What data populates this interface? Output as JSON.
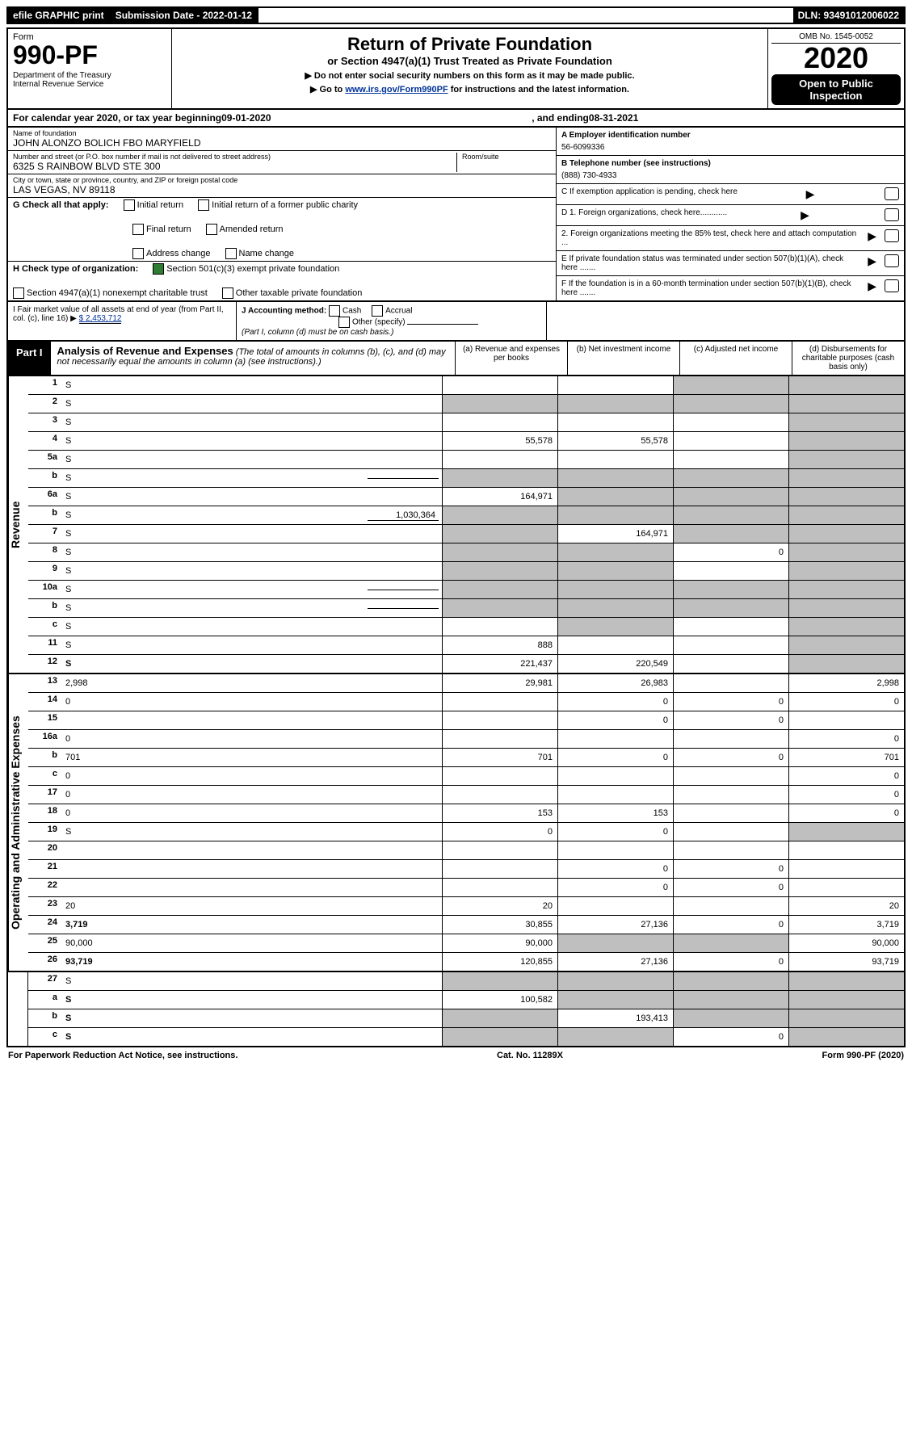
{
  "topbar": {
    "efile": "efile GRAPHIC print",
    "sub_label": "Submission Date - 2022-01-12",
    "dln": "DLN: 93491012006022"
  },
  "header": {
    "form_label": "Form",
    "form_no": "990-PF",
    "dept": "Department of the Treasury\nInternal Revenue Service",
    "title": "Return of Private Foundation",
    "subtitle": "or Section 4947(a)(1) Trust Treated as Private Foundation",
    "note1": "▶ Do not enter social security numbers on this form as it may be made public.",
    "note2_pre": "▶ Go to ",
    "note2_link": "www.irs.gov/Form990PF",
    "note2_post": " for instructions and the latest information.",
    "omb": "OMB No. 1545-0052",
    "year": "2020",
    "open": "Open to Public Inspection"
  },
  "cal": {
    "prefix": "For calendar year 2020, or tax year beginning ",
    "begin": "09-01-2020",
    "mid": " , and ending ",
    "end": "08-31-2021"
  },
  "entity": {
    "name_label": "Name of foundation",
    "name": "JOHN ALONZO BOLICH FBO MARYFIELD",
    "addr_label": "Number and street (or P.O. box number if mail is not delivered to street address)",
    "addr": "6325 S RAINBOW BLVD STE 300",
    "room_label": "Room/suite",
    "city_label": "City or town, state or province, country, and ZIP or foreign postal code",
    "city": "LAS VEGAS, NV  89118",
    "ein_label": "A Employer identification number",
    "ein": "56-6099336",
    "phone_label": "B Telephone number (see instructions)",
    "phone": "(888) 730-4933",
    "c_label": "C If exemption application is pending, check here",
    "d1_label": "D 1. Foreign organizations, check here............",
    "d2_label": "2. Foreign organizations meeting the 85% test, check here and attach computation ...",
    "e_label": "E If private foundation status was terminated under section 507(b)(1)(A), check here .......",
    "f_label": "F If the foundation is in a 60-month termination under section 507(b)(1)(B), check here ......."
  },
  "checks": {
    "g_label": "G Check all that apply:",
    "initial": "Initial return",
    "initial_former": "Initial return of a former public charity",
    "final": "Final return",
    "amended": "Amended return",
    "addr_change": "Address change",
    "name_change": "Name change",
    "h_label": "H Check type of organization:",
    "h_501c3": "Section 501(c)(3) exempt private foundation",
    "h_4947": "Section 4947(a)(1) nonexempt charitable trust",
    "h_other": "Other taxable private foundation"
  },
  "acct": {
    "i_label": "I Fair market value of all assets at end of year (from Part II, col. (c), line 16) ▶",
    "i_val": "$ 2,453,712",
    "j_label": "J Accounting method:",
    "cash": "Cash",
    "accrual": "Accrual",
    "other": "Other (specify)",
    "note": "(Part I, column (d) must be on cash basis.)"
  },
  "part1": {
    "label": "Part I",
    "title": "Analysis of Revenue and Expenses",
    "title_note": "(The total of amounts in columns (b), (c), and (d) may not necessarily equal the amounts in column (a) (see instructions).)",
    "col_a": "(a) Revenue and expenses per books",
    "col_b": "(b) Net investment income",
    "col_c": "(c) Adjusted net income",
    "col_d": "(d) Disbursements for charitable purposes (cash basis only)",
    "side_revenue": "Revenue",
    "side_expenses": "Operating and Administrative Expenses"
  },
  "rows": [
    {
      "n": "1",
      "d": "S",
      "a": "",
      "b": "",
      "c": "S"
    },
    {
      "n": "2",
      "d": "S",
      "a": "S",
      "b": "S",
      "c": "S",
      "nob": true
    },
    {
      "n": "3",
      "d": "S",
      "a": "",
      "b": "",
      "c": ""
    },
    {
      "n": "4",
      "d": "S",
      "a": "55,578",
      "b": "55,578",
      "c": ""
    },
    {
      "n": "5a",
      "d": "S",
      "a": "",
      "b": "",
      "c": ""
    },
    {
      "n": "b",
      "d": "S",
      "a": "S",
      "b": "S",
      "c": "S",
      "inline": ""
    },
    {
      "n": "6a",
      "d": "S",
      "a": "164,971",
      "b": "S",
      "c": "S"
    },
    {
      "n": "b",
      "d": "S",
      "a": "S",
      "b": "S",
      "c": "S",
      "inline": "1,030,364"
    },
    {
      "n": "7",
      "d": "S",
      "a": "S",
      "b": "164,971",
      "c": "S"
    },
    {
      "n": "8",
      "d": "S",
      "a": "S",
      "b": "S",
      "c": "0"
    },
    {
      "n": "9",
      "d": "S",
      "a": "S",
      "b": "S",
      "c": ""
    },
    {
      "n": "10a",
      "d": "S",
      "a": "S",
      "b": "S",
      "c": "S",
      "inline": ""
    },
    {
      "n": "b",
      "d": "S",
      "a": "S",
      "b": "S",
      "c": "S",
      "inline": ""
    },
    {
      "n": "c",
      "d": "S",
      "a": "",
      "b": "S",
      "c": ""
    },
    {
      "n": "11",
      "d": "S",
      "a": "888",
      "b": "",
      "c": ""
    },
    {
      "n": "12",
      "d": "S",
      "a": "221,437",
      "b": "220,549",
      "c": "",
      "bold": true
    }
  ],
  "rows2": [
    {
      "n": "13",
      "d": "2,998",
      "a": "29,981",
      "b": "26,983",
      "c": ""
    },
    {
      "n": "14",
      "d": "0",
      "a": "",
      "b": "0",
      "c": "0"
    },
    {
      "n": "15",
      "d": "",
      "a": "",
      "b": "0",
      "c": "0"
    },
    {
      "n": "16a",
      "d": "0",
      "a": "",
      "b": "",
      "c": ""
    },
    {
      "n": "b",
      "d": "701",
      "a": "701",
      "b": "0",
      "c": "0"
    },
    {
      "n": "c",
      "d": "0",
      "a": "",
      "b": "",
      "c": ""
    },
    {
      "n": "17",
      "d": "0",
      "a": "",
      "b": "",
      "c": ""
    },
    {
      "n": "18",
      "d": "0",
      "a": "153",
      "b": "153",
      "c": ""
    },
    {
      "n": "19",
      "d": "S",
      "a": "0",
      "b": "0",
      "c": ""
    },
    {
      "n": "20",
      "d": "",
      "a": "",
      "b": "",
      "c": ""
    },
    {
      "n": "21",
      "d": "",
      "a": "",
      "b": "0",
      "c": "0"
    },
    {
      "n": "22",
      "d": "",
      "a": "",
      "b": "0",
      "c": "0"
    },
    {
      "n": "23",
      "d": "20",
      "a": "20",
      "b": "",
      "c": ""
    },
    {
      "n": "24",
      "d": "3,719",
      "a": "30,855",
      "b": "27,136",
      "c": "0",
      "bold": true
    },
    {
      "n": "25",
      "d": "90,000",
      "a": "90,000",
      "b": "S",
      "c": "S"
    },
    {
      "n": "26",
      "d": "93,719",
      "a": "120,855",
      "b": "27,136",
      "c": "0",
      "bold": true
    }
  ],
  "rows3": [
    {
      "n": "27",
      "d": "S",
      "a": "S",
      "b": "S",
      "c": "S"
    },
    {
      "n": "a",
      "d": "S",
      "a": "100,582",
      "b": "S",
      "c": "S",
      "bold": true
    },
    {
      "n": "b",
      "d": "S",
      "a": "S",
      "b": "193,413",
      "c": "S",
      "bold": true
    },
    {
      "n": "c",
      "d": "S",
      "a": "S",
      "b": "S",
      "c": "0",
      "bold": true
    }
  ],
  "footer": {
    "left": "For Paperwork Reduction Act Notice, see instructions.",
    "mid": "Cat. No. 11289X",
    "right": "Form 990-PF (2020)"
  }
}
